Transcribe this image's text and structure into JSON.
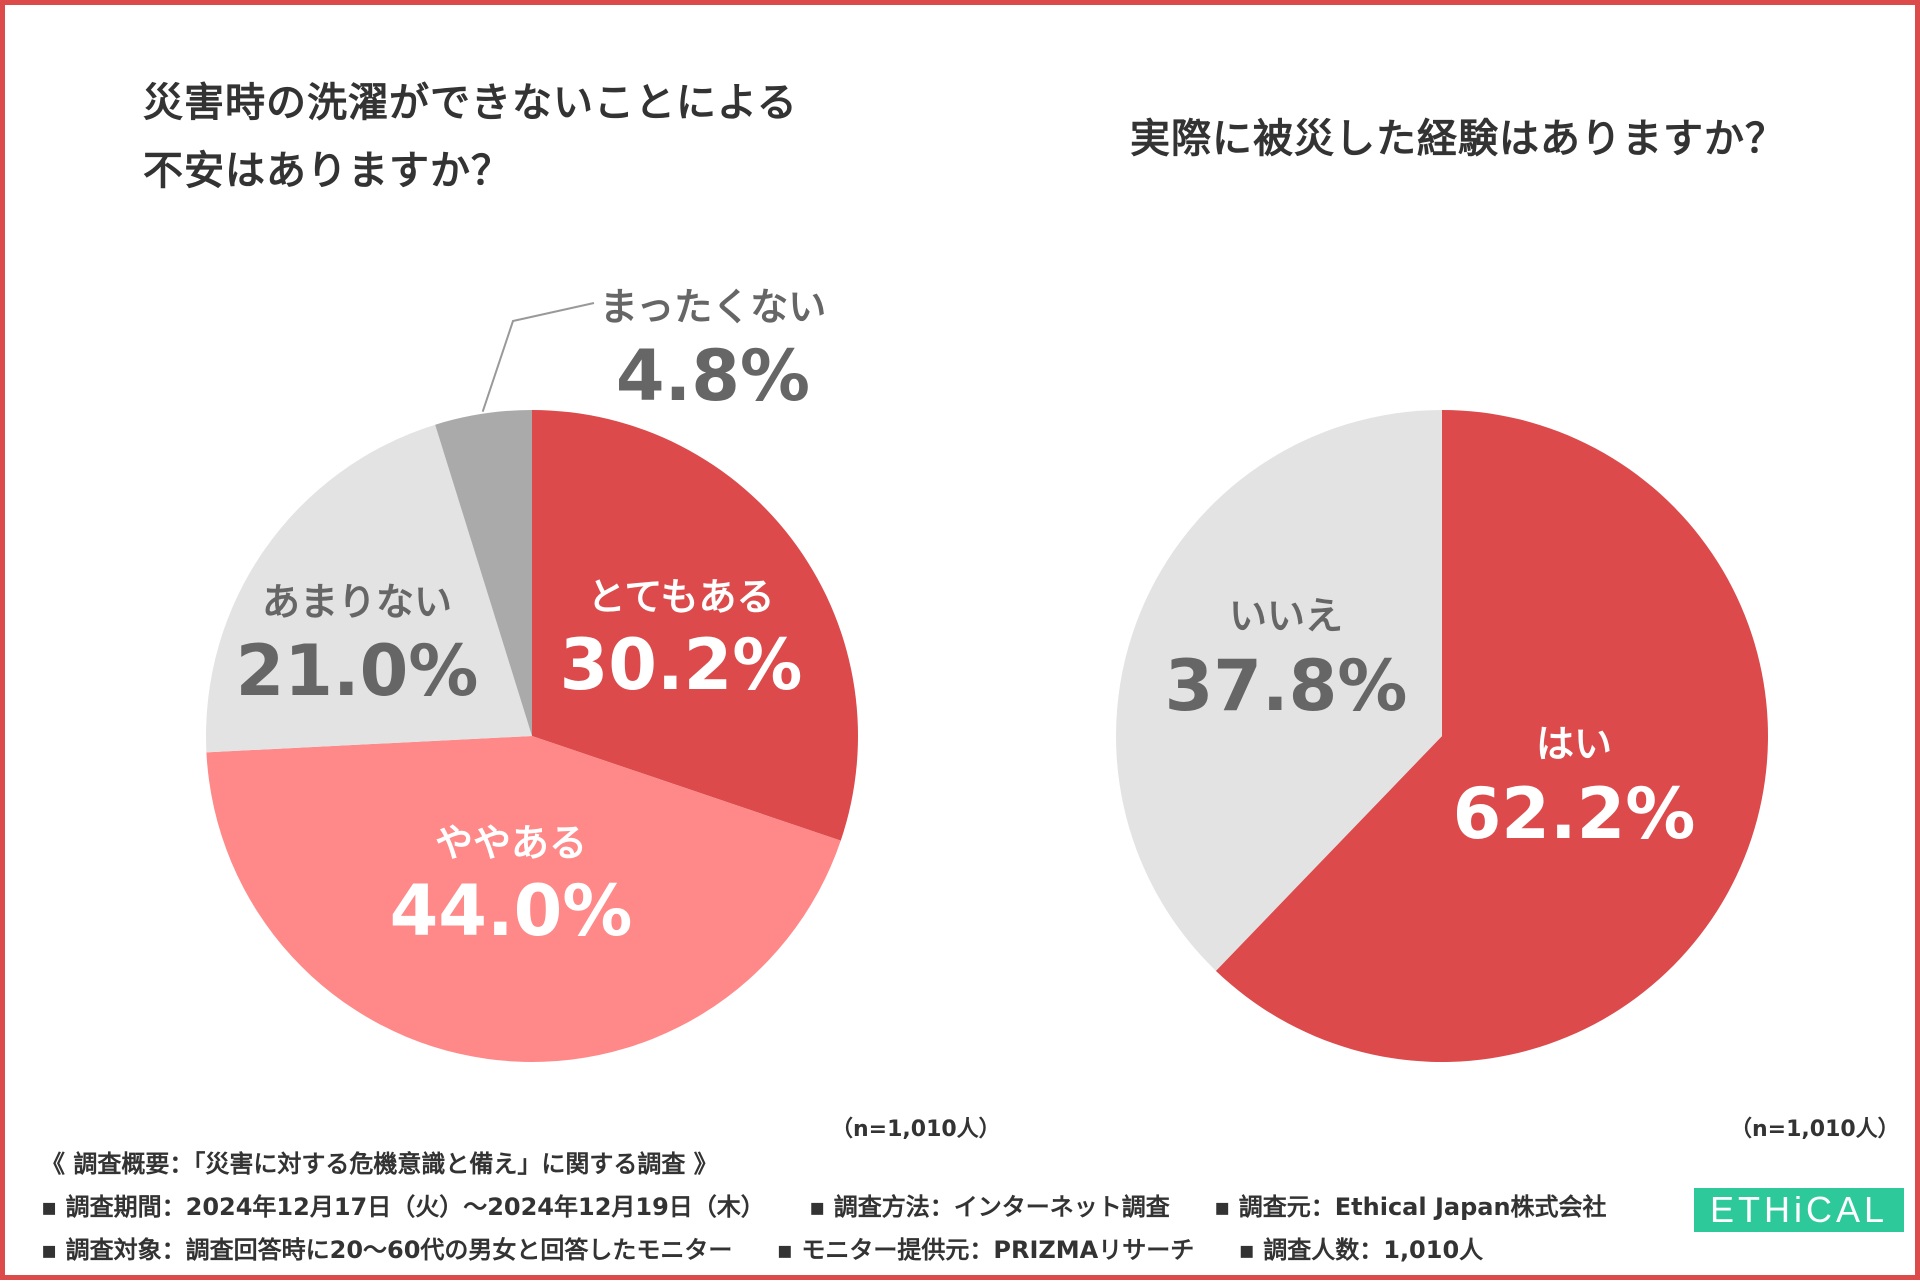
{
  "colors": {
    "frame": "#dd4a4b",
    "red": "#dc4a4b",
    "pink": "#ff8888",
    "light_gray": "#e3e3e3",
    "mid_gray": "#aaaaaa",
    "text": "#333333",
    "logo_green": "#2ec99a"
  },
  "chart_data": [
    {
      "type": "pie",
      "title": "災害時の洗濯ができないことによる 不安はありますか？",
      "title_lines": [
        "災害時の洗濯ができないことによる",
        "不安はありますか？"
      ],
      "slices": [
        {
          "label": "とてもある",
          "value": 30.2,
          "display": "30.2%",
          "color": "#dc4a4b",
          "text_color": "#ffffff"
        },
        {
          "label": "ややある",
          "value": 44.0,
          "display": "44.0%",
          "color": "#ff8888",
          "text_color": "#ffffff"
        },
        {
          "label": "あまりない",
          "value": 21.0,
          "display": "21.0%",
          "color": "#e3e3e3",
          "text_color": "#666666"
        },
        {
          "label": "まったくない",
          "value": 4.8,
          "display": "4.8%",
          "color": "#aaaaaa",
          "text_color": "#666666"
        }
      ],
      "note": "（n=1,010人）"
    },
    {
      "type": "pie",
      "title": "実際に被災した経験はありますか？",
      "title_lines": [
        "実際に被災した経験はありますか？"
      ],
      "slices": [
        {
          "label": "はい",
          "value": 62.2,
          "display": "62.2%",
          "color": "#dc4a4b",
          "text_color": "#ffffff"
        },
        {
          "label": "いいえ",
          "value": 37.8,
          "display": "37.8%",
          "color": "#e3e3e3",
          "text_color": "#666666"
        }
      ],
      "note": "（n=1,010人）"
    }
  ],
  "footer": {
    "summary": "《 調査概要：「災害に対する危機意識と備え」に関する調査 》",
    "period": "▪ 調査期間：2024年12月17日（火）〜2024年12月19日（木）",
    "method": "▪ 調査方法：インターネット調査",
    "source": "▪ 調査元：Ethical Japan株式会社",
    "target": "▪ 調査対象：調査回答時に20〜60代の男女と回答したモニター",
    "provider": "▪ モニター提供元：PRIZMAリサーチ",
    "respondents": "▪ 調査人数：1,010人"
  },
  "logo": {
    "text": "ETHiCAL"
  }
}
